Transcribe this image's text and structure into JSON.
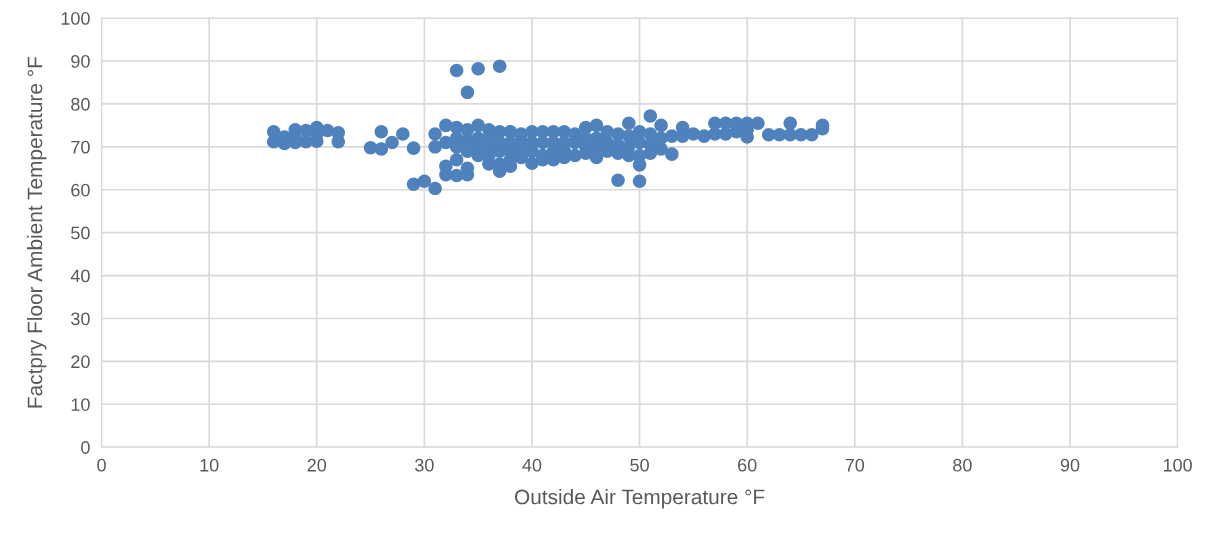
{
  "chart_data": {
    "type": "scatter",
    "xlabel": "Outside Air Temperature °F",
    "ylabel": "Factpry Floor Ambient Temperature °F",
    "xlim": [
      0,
      100
    ],
    "xticks": [
      0,
      10,
      20,
      30,
      40,
      50,
      60,
      70,
      80,
      90,
      100
    ],
    "ylim": [
      0,
      100
    ],
    "yticks": [
      0,
      10,
      20,
      30,
      40,
      50,
      60,
      70,
      80,
      90,
      100
    ],
    "grid": true,
    "marker": "circle",
    "series": [
      {
        "color": "#4f81bd",
        "x": [
          16,
          16,
          17,
          17,
          18,
          18,
          18,
          19,
          19,
          20,
          20,
          20,
          21,
          22,
          22,
          25,
          26,
          26,
          27,
          28,
          29,
          29,
          30,
          31,
          31,
          31,
          32,
          32,
          32,
          32,
          33,
          33,
          33,
          33,
          33,
          33,
          34,
          34,
          34,
          34,
          34,
          34,
          35,
          35,
          35,
          35,
          35,
          36,
          36,
          36,
          36,
          36,
          37,
          37,
          37,
          37,
          37,
          37,
          38,
          38,
          38,
          38,
          38,
          39,
          39,
          39,
          39,
          40,
          40,
          40,
          40,
          41,
          41,
          41,
          41,
          42,
          42,
          42,
          42,
          43,
          43,
          43,
          43,
          44,
          44,
          44,
          45,
          45,
          45,
          45,
          46,
          46,
          46,
          46,
          47,
          47,
          47,
          48,
          48,
          48,
          48,
          49,
          49,
          49,
          49,
          50,
          50,
          50,
          50,
          50,
          51,
          51,
          51,
          51,
          52,
          52,
          52,
          53,
          53,
          54,
          54,
          55,
          56,
          57,
          57,
          58,
          58,
          59,
          59,
          60,
          60,
          60,
          61,
          62,
          63,
          64,
          64,
          65,
          66,
          67,
          67
        ],
        "values": [
          73.5,
          71.2,
          72.3,
          70.8,
          74,
          71,
          72,
          73.8,
          71.2,
          74.5,
          71.3,
          73,
          73.8,
          73.3,
          71.2,
          69.8,
          73.5,
          69.5,
          71,
          73,
          69.7,
          61.3,
          62,
          60.3,
          70,
          73,
          75,
          71,
          65.5,
          63.5,
          87.8,
          74.5,
          72,
          70,
          67,
          63.3,
          82.7,
          74,
          71.5,
          69,
          65,
          63.5,
          88.2,
          75,
          72,
          70,
          68,
          74,
          72,
          70,
          68,
          66,
          88.8,
          73.5,
          71,
          69,
          66,
          64.3,
          73.5,
          71,
          69,
          67,
          65.5,
          73,
          71,
          69,
          67.5,
          73.5,
          71,
          69,
          66.2,
          73.5,
          71,
          68,
          67,
          73.5,
          71,
          69,
          67,
          73.5,
          71,
          69,
          67.5,
          73,
          71,
          68,
          74.5,
          72,
          70,
          68.5,
          75,
          72,
          70,
          67.5,
          73.5,
          71,
          69,
          73,
          70.5,
          68.5,
          62.2,
          75.5,
          72.5,
          70,
          68,
          73.5,
          71,
          68,
          65.8,
          62,
          77.2,
          73,
          70.5,
          68.5,
          75,
          72,
          69.5,
          72.5,
          68.3,
          74.5,
          72.5,
          73,
          72.5,
          75.5,
          73,
          75.5,
          73,
          75.5,
          73.5,
          75.5,
          72.3,
          74,
          75.5,
          72.8,
          72.8,
          75.5,
          72.8,
          72.8,
          72.8,
          75,
          74.2
        ]
      }
    ]
  }
}
